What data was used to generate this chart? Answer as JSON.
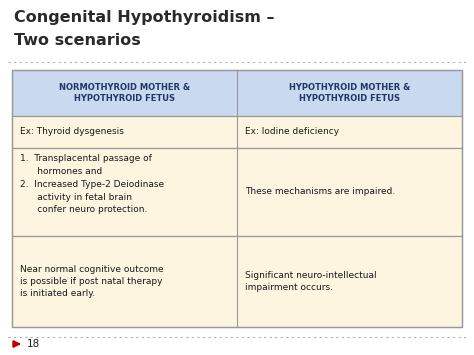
{
  "title_line1": "Congenital Hypothyroidism –",
  "title_line2": "Two scenarios",
  "title_color": "#2a2a2a",
  "title_fontsize": 11.5,
  "title_fontweight": "bold",
  "bg_color": "#ffffff",
  "header_bg": "#c9d9f0",
  "cell_bg": "#fdf5e0",
  "border_color": "#999999",
  "header_text_color": "#1f3864",
  "cell_text_color": "#1a1a1a",
  "slide_number": "18",
  "dotted_line_color": "#b0b0b0",
  "arrow_color": "#c00000",
  "col1_header": "NORMOTHYROID MOTHER &\nHYPOTHYROID FETUS",
  "col2_header": "HYPOTHYROID MOTHER &\nHYPOTHYROID FETUS",
  "row1_col1": "Ex: Thyroid dysgenesis",
  "row1_col2": "Ex: Iodine deficiency",
  "row2_col1": "1.  Transplacental passage of\n      hormones and\n2.  Increased Type-2 Deiodinase\n      activity in fetal brain\n      confer neuro protection.",
  "row2_col2": "These mechanisms are impaired.",
  "row3_col1": "Near normal cognitive outcome\nis possible if post natal therapy\nis initiated early.",
  "row3_col2": "Significant neuro-intellectual\nimpairment occurs.",
  "fig_width": 4.74,
  "fig_height": 3.55,
  "dpi": 100
}
